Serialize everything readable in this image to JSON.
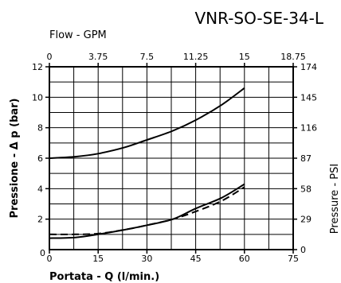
{
  "chart_data": {
    "type": "line",
    "title": "VNR-SO-SE-34-L",
    "xlabel": "Portata - Q (l/min.)",
    "ylabel": "Pressione - Δ p (bar)",
    "x2label": "Flow - GPM",
    "y2label": "Pressure - PSI",
    "xlim": [
      0,
      75
    ],
    "ylim": [
      0,
      12
    ],
    "x2lim": [
      0,
      18.75
    ],
    "y2lim": [
      0,
      174
    ],
    "x_ticks": [
      0,
      15,
      30,
      45,
      60,
      75
    ],
    "y_ticks": [
      2,
      4,
      6,
      8,
      10,
      12
    ],
    "x2_ticks": [
      "0",
      "3.75",
      "7.5",
      "11.25",
      "15",
      "18.75"
    ],
    "y2_ticks": [
      "0",
      "29",
      "58",
      "87",
      "116",
      "145",
      "174"
    ],
    "grid": true,
    "series": [
      {
        "style": "solid",
        "x": [
          0,
          8,
          15,
          23,
          30,
          38,
          45,
          53,
          60
        ],
        "y": [
          6.0,
          6.1,
          6.3,
          6.7,
          7.2,
          7.8,
          8.5,
          9.5,
          10.6
        ]
      },
      {
        "style": "solid",
        "x": [
          0,
          8,
          15,
          23,
          30,
          38,
          45,
          53,
          60
        ],
        "y": [
          0.75,
          0.8,
          1.0,
          1.3,
          1.6,
          2.0,
          2.7,
          3.4,
          4.3
        ]
      },
      {
        "style": "dashed",
        "x": [
          0,
          8,
          15,
          23,
          30,
          38,
          45,
          53,
          60
        ],
        "y": [
          1.0,
          1.0,
          1.05,
          1.3,
          1.6,
          2.0,
          2.5,
          3.2,
          4.1
        ]
      }
    ]
  }
}
